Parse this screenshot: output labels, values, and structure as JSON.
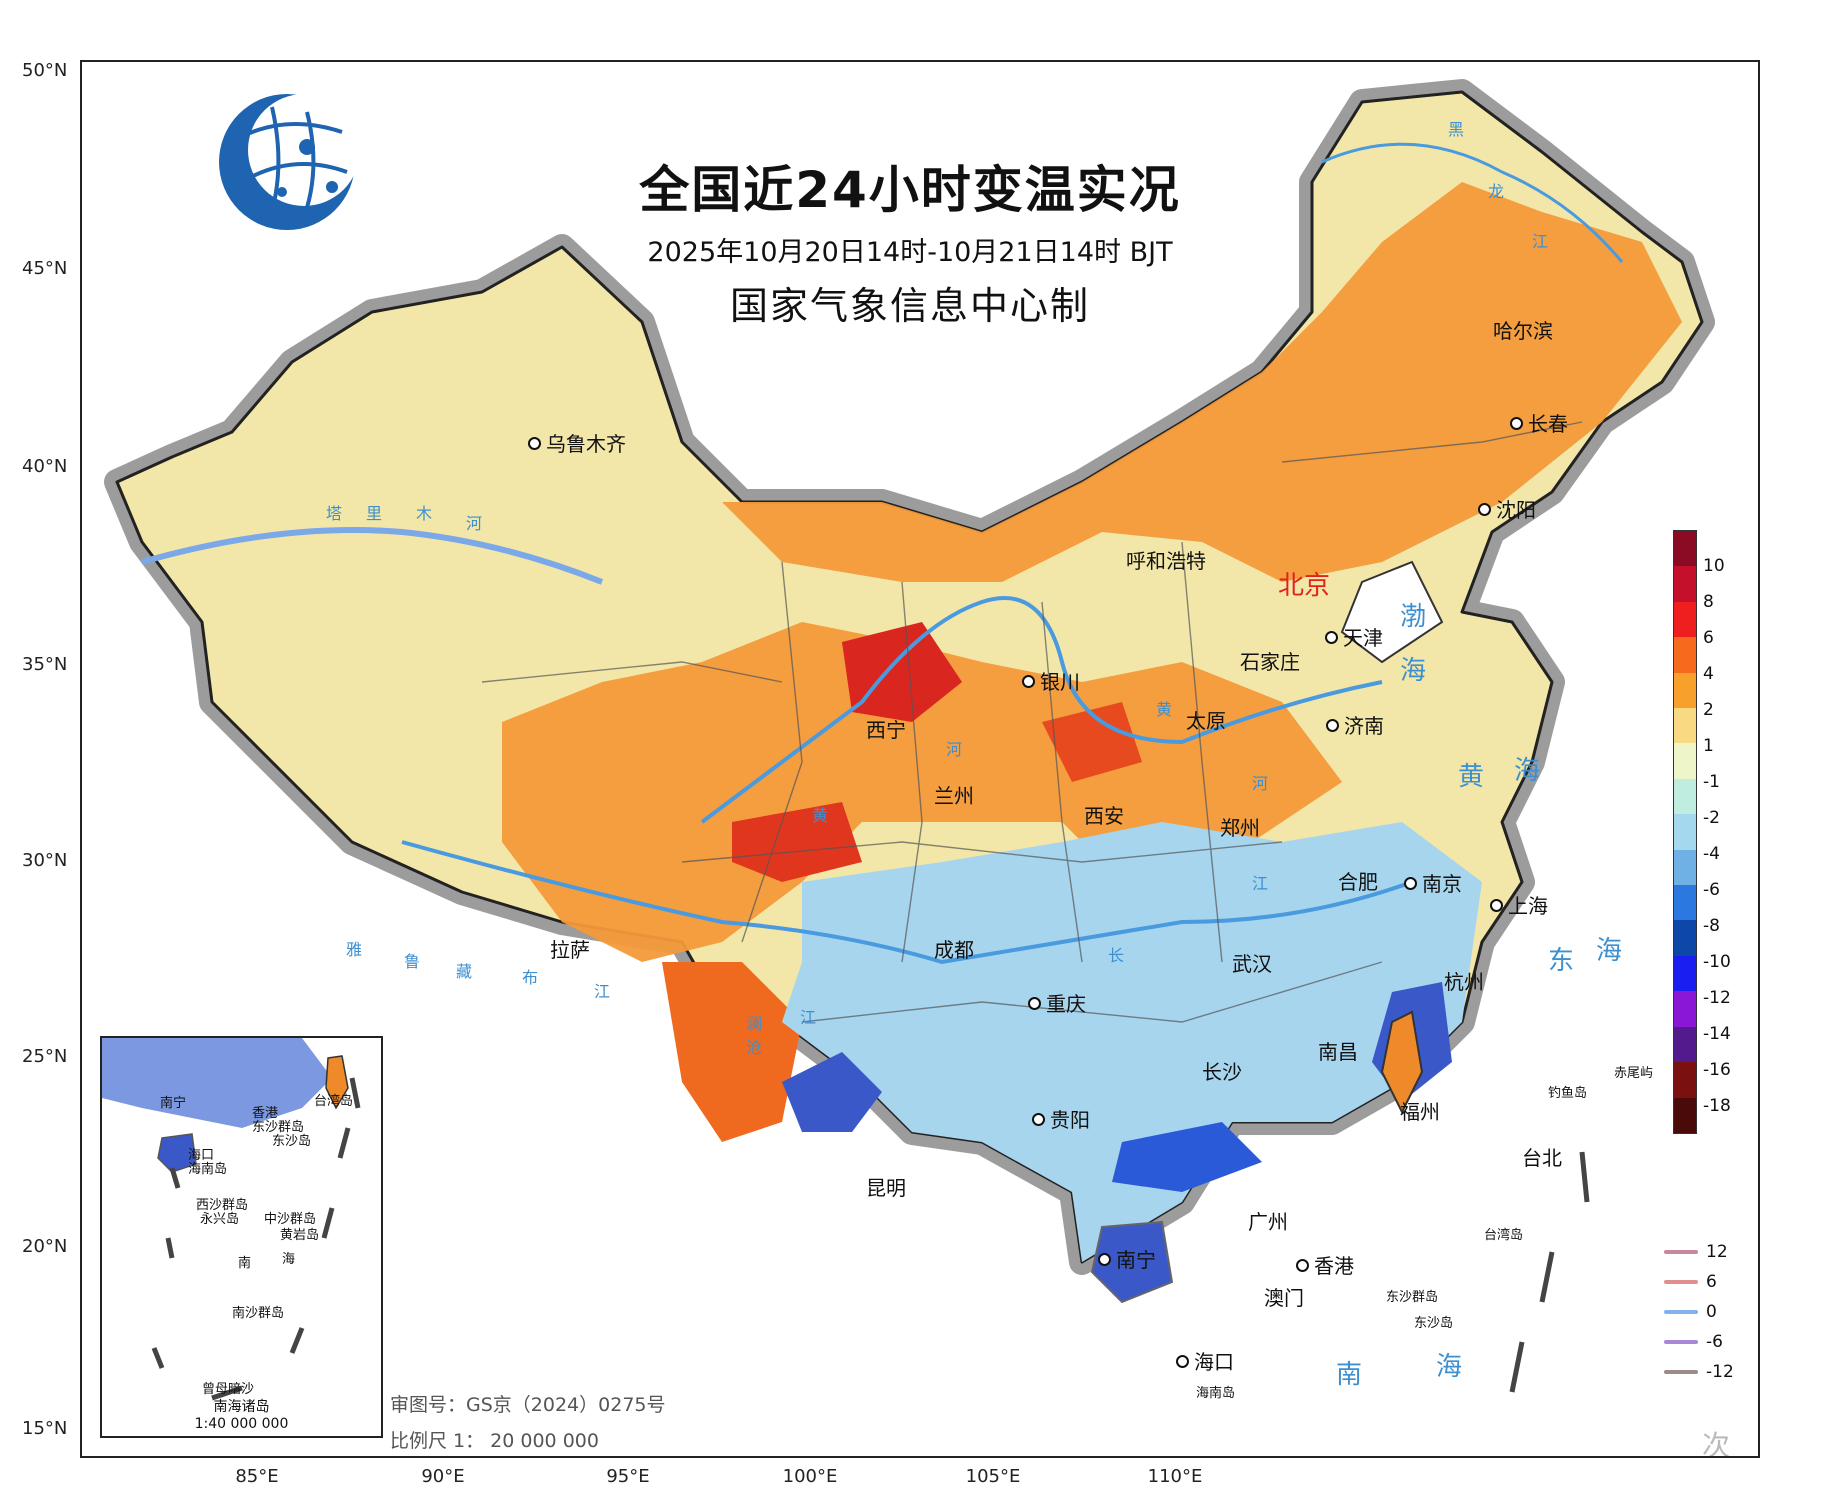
{
  "title": "全国近24小时变温实况",
  "subtitle": "2025年10月20日14时-10月21日14时 BJT",
  "issuer": "国家气象信息中心制",
  "approval_no": "审图号：GS京（2024）0275号",
  "scale": "比例尺 1： 20 000 000",
  "lat_labels": [
    "50°N",
    "45°N",
    "40°N",
    "35°N",
    "30°N",
    "25°N",
    "20°N",
    "15°N"
  ],
  "lon_labels": [
    "85°E",
    "90°E",
    "95°E",
    "100°E",
    "105°E",
    "110°E"
  ],
  "cities": [
    {
      "name": "乌鲁木齐"
    },
    {
      "name": "哈尔滨"
    },
    {
      "name": "长春"
    },
    {
      "name": "沈阳"
    },
    {
      "name": "呼和浩特"
    },
    {
      "name": "天津"
    },
    {
      "name": "石家庄"
    },
    {
      "name": "银川"
    },
    {
      "name": "太原"
    },
    {
      "name": "济南"
    },
    {
      "name": "西宁"
    },
    {
      "name": "兰州"
    },
    {
      "name": "西安"
    },
    {
      "name": "郑州"
    },
    {
      "name": "合肥"
    },
    {
      "name": "南京"
    },
    {
      "name": "上海"
    },
    {
      "name": "拉萨"
    },
    {
      "name": "成都"
    },
    {
      "name": "武汉"
    },
    {
      "name": "杭州"
    },
    {
      "name": "重庆"
    },
    {
      "name": "南昌"
    },
    {
      "name": "长沙"
    },
    {
      "name": "福州"
    },
    {
      "name": "贵阳"
    },
    {
      "name": "台北"
    },
    {
      "name": "昆明"
    },
    {
      "name": "广州"
    },
    {
      "name": "南宁"
    },
    {
      "name": "香港"
    },
    {
      "name": "澳门"
    },
    {
      "name": "海口"
    }
  ],
  "capital": "北京",
  "seas": [
    "渤",
    "海",
    "黄",
    "海",
    "东",
    "海",
    "南",
    "海"
  ],
  "rivers": [
    "黑",
    "龙",
    "江",
    "塔",
    "里",
    "木",
    "河",
    "黄",
    "河",
    "黄",
    "河",
    "雅",
    "鲁",
    "藏",
    "布",
    "江",
    "长",
    "江",
    "澜",
    "沧",
    "江"
  ],
  "islands": {
    "taiwan_city": "台湾岛",
    "hainan": "海南岛",
    "dongsha_group": "东沙群岛",
    "dongsha": "东沙岛",
    "diaoyu": "钓鱼岛",
    "chiwei": "赤尾屿"
  },
  "inset": {
    "title": "南海诸岛",
    "scale": "1:40 000 000",
    "labels": [
      "南宁",
      "香港",
      "台湾岛",
      "东沙群岛",
      "东沙岛",
      "海口",
      "海南岛",
      "西沙群岛",
      "永兴岛",
      "中沙群岛",
      "黄岩岛",
      "南",
      "海",
      "南沙群岛",
      "曾母暗沙"
    ]
  },
  "legend": {
    "fill_colors": [
      "#8b0b24",
      "#c4102b",
      "#ef1f1f",
      "#f56a1c",
      "#f7a12c",
      "#fad983",
      "#eef5c9",
      "#bfeee0",
      "#a4d8ef",
      "#6fb1e4",
      "#2a78e0",
      "#0d47a8",
      "#1a1ef0",
      "#8b17d6",
      "#531a8e",
      "#7a1010",
      "#4a0a0a"
    ],
    "labels": [
      "10",
      "8",
      "6",
      "4",
      "2",
      "1",
      "-1",
      "-2",
      "-4",
      "-6",
      "-8",
      "-10",
      "-12",
      "-14",
      "-16",
      "-18"
    ]
  },
  "line_legend": [
    {
      "label": "12",
      "color": "#c8879a"
    },
    {
      "label": "6",
      "color": "#e28d8d"
    },
    {
      "label": "0",
      "color": "#7fb3ea"
    },
    {
      "label": "-6",
      "color": "#a886d8"
    },
    {
      "label": "-12",
      "color": "#9d8a8a"
    }
  ],
  "watermark": "次"
}
